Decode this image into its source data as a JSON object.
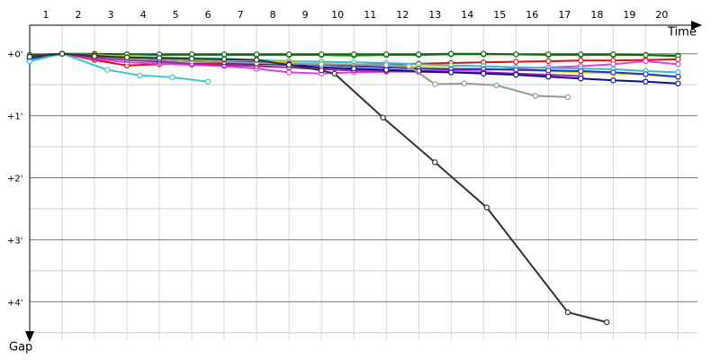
{
  "chart_data": {
    "type": "line",
    "x_label": "Time",
    "y_label": "Gap",
    "xlim": [
      0,
      20.6
    ],
    "ylim": [
      -0.46,
      4.62
    ],
    "y_inverted": true,
    "xticks": [
      {
        "value": 1,
        "label": "1"
      },
      {
        "value": 2,
        "label": "2"
      },
      {
        "value": 3,
        "label": "3"
      },
      {
        "value": 4,
        "label": "4"
      },
      {
        "value": 5,
        "label": "5"
      },
      {
        "value": 6,
        "label": "6"
      },
      {
        "value": 7,
        "label": "7"
      },
      {
        "value": 8,
        "label": "8"
      },
      {
        "value": 9,
        "label": "9"
      },
      {
        "value": 10,
        "label": "10"
      },
      {
        "value": 11,
        "label": "11"
      },
      {
        "value": 12,
        "label": "12"
      },
      {
        "value": 13,
        "label": "13"
      },
      {
        "value": 14,
        "label": "14"
      },
      {
        "value": 15,
        "label": "15"
      },
      {
        "value": 16,
        "label": "16"
      },
      {
        "value": 17,
        "label": "17"
      },
      {
        "value": 18,
        "label": "18"
      },
      {
        "value": 19,
        "label": "19"
      },
      {
        "value": 20,
        "label": "20"
      }
    ],
    "yticks": [
      {
        "value": 0,
        "label": "+0'"
      },
      {
        "value": 1,
        "label": "+1'"
      },
      {
        "value": 2,
        "label": "+2'"
      },
      {
        "value": 3,
        "label": "+3'"
      },
      {
        "value": 4,
        "label": "+4'"
      }
    ],
    "yminor": [
      0.5,
      1.5,
      2.5,
      3.5,
      4.5
    ],
    "grid": true,
    "x": [
      0,
      1,
      2,
      3,
      4,
      5,
      6,
      7,
      8,
      9,
      10,
      11,
      12,
      13,
      14,
      15,
      16,
      17,
      18,
      19,
      20
    ],
    "series": [
      {
        "color": "#1a9a1a",
        "values": [
          0.1,
          0,
          0.01,
          0.01,
          0.02,
          0.02,
          0.02,
          0.02,
          0.02,
          0.02,
          0.03,
          0.02,
          0.02,
          0.01,
          0.01,
          0.01,
          0.02,
          0.02,
          0.02,
          0.02,
          0.03
        ]
      },
      {
        "color": "#0b6b0b",
        "values": [
          0.02,
          0,
          0,
          0.01,
          0.01,
          0.01,
          0.01,
          0.01,
          0.01,
          0.01,
          0.01,
          0.01,
          0.01,
          0,
          0,
          0.01,
          0.01,
          0.01,
          0.01,
          0.02,
          0.04
        ]
      },
      {
        "color": "#dd1111",
        "values": [
          0.07,
          0,
          0.1,
          0.19,
          0.17,
          0.16,
          0.16,
          0.17,
          0.17,
          0.17,
          0.18,
          0.17,
          0.16,
          0.15,
          0.14,
          0.13,
          0.12,
          0.11,
          0.11,
          0.1,
          0.09
        ]
      },
      {
        "color": "#e040e0",
        "values": [
          0.12,
          0,
          0.08,
          0.14,
          0.16,
          0.18,
          0.2,
          0.24,
          0.3,
          0.32,
          0.3,
          0.29,
          0.28,
          0.27,
          0.26,
          0.24,
          0.22,
          0.2,
          0.17,
          0.12,
          0.17
        ]
      },
      {
        "color": "#33bbcc",
        "values": [
          0.06,
          0,
          0.03,
          0.05,
          0.06,
          0.07,
          0.08,
          0.1,
          0.12,
          0.13,
          0.14,
          0.15,
          0.17,
          0.19,
          0.2,
          0.22,
          0.23,
          0.24,
          0.25,
          0.28,
          0.3
        ]
      },
      {
        "color": "#dddd00",
        "values": [
          0.1,
          0,
          0.02,
          0.05,
          0.07,
          0.09,
          0.1,
          0.12,
          0.14,
          0.16,
          0.18,
          0.19,
          0.21,
          0.23,
          0.24,
          0.26,
          0.28,
          0.3,
          0.32,
          0.34,
          0.38
        ]
      },
      {
        "color": "#2233cc",
        "values": [
          0.08,
          0,
          0.04,
          0.08,
          0.1,
          0.12,
          0.13,
          0.14,
          0.16,
          0.18,
          0.2,
          0.22,
          0.24,
          0.25,
          0.25,
          0.26,
          0.27,
          0.28,
          0.3,
          0.33,
          0.37
        ]
      },
      {
        "color": "#a020a0",
        "values": [
          0.04,
          0,
          0.06,
          0.1,
          0.13,
          0.16,
          0.18,
          0.2,
          0.22,
          0.25,
          0.27,
          0.28,
          0.29,
          0.3,
          0.3,
          0.32,
          0.34,
          0.36,
          null,
          null,
          null
        ]
      },
      {
        "color": "#10108b",
        "values": [
          0.05,
          0,
          0.03,
          0.07,
          0.1,
          0.12,
          0.14,
          0.16,
          0.18,
          0.22,
          0.24,
          0.26,
          0.28,
          0.3,
          0.32,
          0.34,
          0.37,
          0.4,
          0.43,
          0.45,
          0.48
        ]
      },
      {
        "color": "#40c8c8",
        "x": [
          0,
          1,
          2.4,
          3.4,
          4.4,
          5.5
        ],
        "values": [
          0.12,
          0,
          0.26,
          0.35,
          0.38,
          0.45
        ]
      },
      {
        "color": "#999999",
        "x": [
          0,
          1,
          3,
          5,
          7,
          9,
          11,
          11.7,
          12.5,
          13.4,
          14.4,
          15.6,
          16.6
        ],
        "values": [
          0.05,
          0,
          0.08,
          0.12,
          0.15,
          0.17,
          0.18,
          0.2,
          0.49,
          0.48,
          0.51,
          0.68,
          0.7
        ]
      },
      {
        "color": "#333333",
        "x": [
          0,
          1,
          2,
          3,
          4,
          5,
          6,
          7,
          8,
          9,
          9.4,
          10.9,
          12.5,
          14.1,
          16.6,
          17.8
        ],
        "values": [
          0.05,
          0,
          0.04,
          0.06,
          0.07,
          0.08,
          0.09,
          0.1,
          0.18,
          0.27,
          0.32,
          1.03,
          1.75,
          2.48,
          4.17,
          4.33
        ]
      }
    ]
  }
}
